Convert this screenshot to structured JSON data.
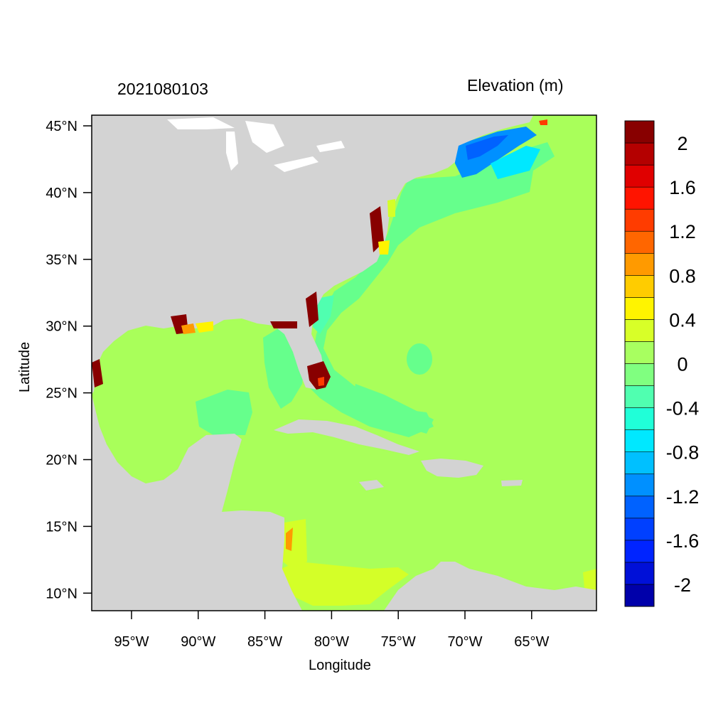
{
  "title_left": "2021080103",
  "title_right": "Elevation (m)",
  "xlabel": "Longitude",
  "ylabel": "Latitude",
  "lon_ticks": [
    "95°W",
    "90°W",
    "85°W",
    "80°W",
    "75°W",
    "70°W",
    "65°W"
  ],
  "lat_ticks": [
    "45°N",
    "40°N",
    "35°N",
    "30°N",
    "25°N",
    "20°N",
    "15°N",
    "10°N"
  ],
  "colorbar": {
    "colors": [
      "#0000aa",
      "#0010d8",
      "#0024ff",
      "#0040ff",
      "#0062ff",
      "#0090ff",
      "#00c0ff",
      "#00e8ff",
      "#20ffd8",
      "#50ffb0",
      "#80ff80",
      "#a8ff60",
      "#d8ff28",
      "#fff400",
      "#ffcc00",
      "#ff9a00",
      "#ff6600",
      "#ff3c00",
      "#ff1400",
      "#e00000",
      "#b40000",
      "#880000"
    ],
    "labels": [
      "-2",
      "-1.6",
      "-1.2",
      "-0.8",
      "-0.4",
      "0",
      "0.4",
      "0.8",
      "1.2",
      "1.6",
      "2"
    ]
  },
  "colors": {
    "land": "#d3d3d3",
    "ocean": "#a9ff5a",
    "shelf": "#66ff8c",
    "caribbean_south": "#d4ff28",
    "gulf_of_maine": "#0090ff",
    "coastal_surge": "#880000"
  }
}
